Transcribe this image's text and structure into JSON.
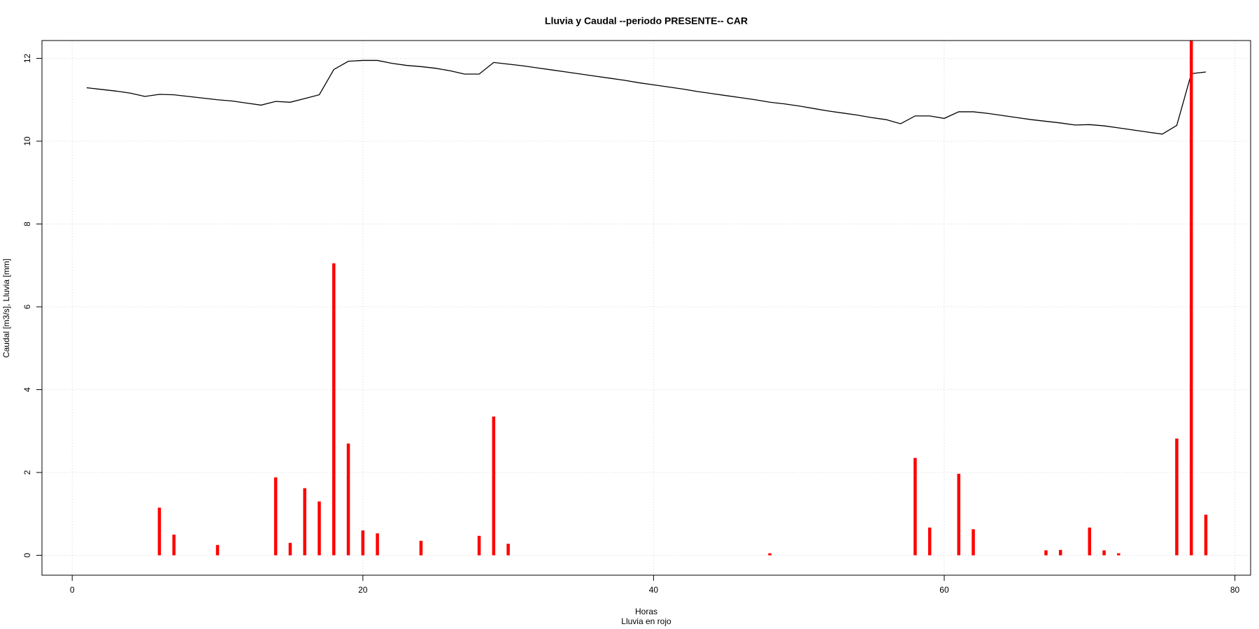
{
  "chart_data": {
    "type": "line",
    "title": "Lluvia y Caudal --periodo PRESENTE-- CAR",
    "xlabel": "Horas",
    "subtitle": "Lluvia en rojo",
    "ylabel": "Caudal [m3/s], Lluvia [mm]",
    "x": [
      1,
      2,
      3,
      4,
      5,
      6,
      7,
      8,
      9,
      10,
      11,
      12,
      13,
      14,
      15,
      16,
      17,
      18,
      19,
      20,
      21,
      22,
      23,
      24,
      25,
      26,
      27,
      28,
      29,
      30,
      31,
      32,
      33,
      34,
      35,
      36,
      37,
      38,
      39,
      40,
      41,
      42,
      43,
      44,
      45,
      46,
      47,
      48,
      49,
      50,
      51,
      52,
      53,
      54,
      55,
      56,
      57,
      58,
      59,
      60,
      61,
      62,
      63,
      64,
      65,
      66,
      67,
      68,
      69,
      70,
      71,
      72,
      73,
      74,
      75,
      76,
      77,
      78
    ],
    "series": [
      {
        "style": "line",
        "color": "#000000",
        "values": [
          11.29,
          11.25,
          11.21,
          11.16,
          11.08,
          11.13,
          11.12,
          11.08,
          11.04,
          11.0,
          10.97,
          10.92,
          10.87,
          10.96,
          10.94,
          11.03,
          11.12,
          11.73,
          11.93,
          11.95,
          11.95,
          11.88,
          11.83,
          11.8,
          11.76,
          11.7,
          11.62,
          11.62,
          11.9,
          11.86,
          11.82,
          11.77,
          11.72,
          11.67,
          11.62,
          11.57,
          11.52,
          11.47,
          11.41,
          11.36,
          11.31,
          11.26,
          11.2,
          11.15,
          11.1,
          11.05,
          11.0,
          10.94,
          10.9,
          10.85,
          10.79,
          10.73,
          10.68,
          10.63,
          10.57,
          10.52,
          10.42,
          10.61,
          10.61,
          10.55,
          10.71,
          10.71,
          10.67,
          10.62,
          10.57,
          10.52,
          10.48,
          10.44,
          10.39,
          10.4,
          10.37,
          10.32,
          10.27,
          10.22,
          10.17,
          10.38,
          11.63,
          11.67
        ]
      },
      {
        "style": "h",
        "color": "#ff0000",
        "values": [
          0,
          0,
          0,
          0,
          0,
          1.15,
          0.5,
          0,
          0,
          0.25,
          0,
          0,
          0,
          1.88,
          0.3,
          1.62,
          1.3,
          7.05,
          2.7,
          0.6,
          0.53,
          0,
          0,
          0.35,
          0,
          0,
          0,
          0.47,
          3.35,
          0.28,
          0,
          0,
          0,
          0,
          0,
          0,
          0,
          0,
          0,
          0,
          0,
          0,
          0,
          0,
          0,
          0,
          0,
          0.05,
          0,
          0,
          0,
          0,
          0,
          0,
          0,
          0,
          0,
          2.35,
          0.67,
          0,
          1.97,
          0.63,
          0,
          0,
          0,
          0,
          0.12,
          0.13,
          0,
          0.67,
          0.12,
          0.05,
          0,
          0,
          0,
          2.82,
          13,
          0.98
        ]
      }
    ],
    "xlim": [
      -2.08,
      81.08
    ],
    "ylim": [
      -0.48,
      12.43
    ],
    "xticks": [
      0,
      20,
      40,
      60,
      80
    ],
    "yticks": [
      0,
      2,
      4,
      6,
      8,
      10,
      12
    ],
    "grid": true
  }
}
